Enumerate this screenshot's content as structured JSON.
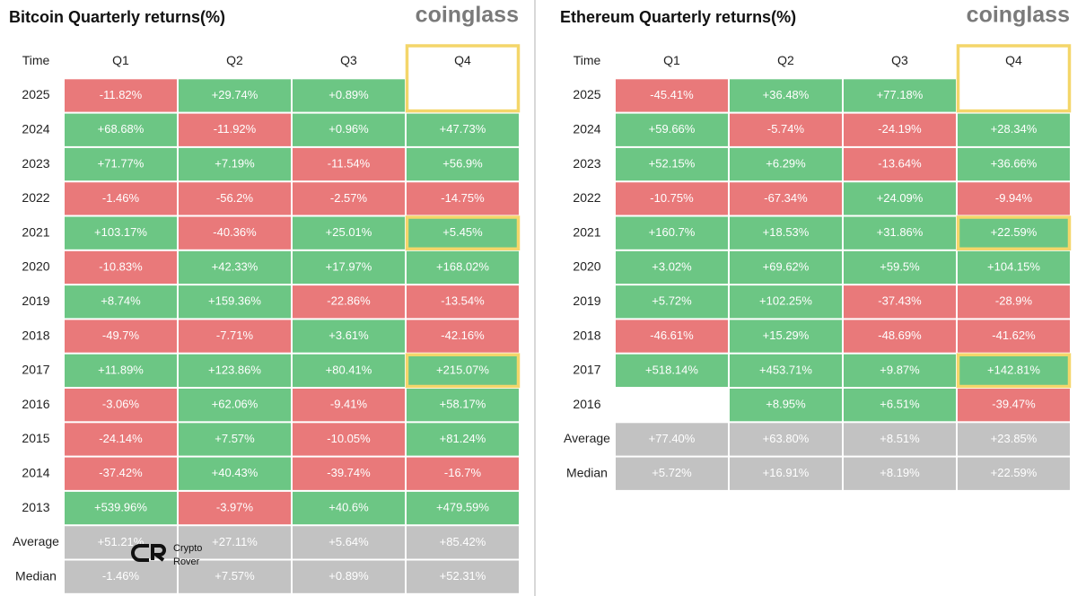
{
  "panels": [
    {
      "title": "Bitcoin Quarterly returns(%)",
      "brand": "coinglass",
      "header": [
        "Time",
        "Q1",
        "Q2",
        "Q3",
        "Q4"
      ],
      "rows": [
        [
          "2025",
          "-11.82%",
          "+29.74%",
          "+0.89%",
          null
        ],
        [
          "2024",
          "+68.68%",
          "-11.92%",
          "+0.96%",
          "+47.73%"
        ],
        [
          "2023",
          "+71.77%",
          "+7.19%",
          "-11.54%",
          "+56.9%"
        ],
        [
          "2022",
          "-1.46%",
          "-56.2%",
          "-2.57%",
          "-14.75%"
        ],
        [
          "2021",
          "+103.17%",
          "-40.36%",
          "+25.01%",
          "+5.45%"
        ],
        [
          "2020",
          "-10.83%",
          "+42.33%",
          "+17.97%",
          "+168.02%"
        ],
        [
          "2019",
          "+8.74%",
          "+159.36%",
          "-22.86%",
          "-13.54%"
        ],
        [
          "2018",
          "-49.7%",
          "-7.71%",
          "+3.61%",
          "-42.16%"
        ],
        [
          "2017",
          "+11.89%",
          "+123.86%",
          "+80.41%",
          "+215.07%"
        ],
        [
          "2016",
          "-3.06%",
          "+62.06%",
          "-9.41%",
          "+58.17%"
        ],
        [
          "2015",
          "-24.14%",
          "+7.57%",
          "-10.05%",
          "+81.24%"
        ],
        [
          "2014",
          "-37.42%",
          "+40.43%",
          "-39.74%",
          "-16.7%"
        ],
        [
          "2013",
          "+539.96%",
          "-3.97%",
          "+40.6%",
          "+479.59%"
        ],
        [
          "Average",
          "+51.21%",
          "+27.11%",
          "+5.64%",
          "+85.42%"
        ],
        [
          "Median",
          "-1.46%",
          "+7.57%",
          "+0.89%",
          "+52.31%"
        ]
      ]
    },
    {
      "title": "Ethereum Quarterly returns(%)",
      "brand": "coinglass",
      "header": [
        "Time",
        "Q1",
        "Q2",
        "Q3",
        "Q4"
      ],
      "rows": [
        [
          "2025",
          "-45.41%",
          "+36.48%",
          "+77.18%",
          null
        ],
        [
          "2024",
          "+59.66%",
          "-5.74%",
          "-24.19%",
          "+28.34%"
        ],
        [
          "2023",
          "+52.15%",
          "+6.29%",
          "-13.64%",
          "+36.66%"
        ],
        [
          "2022",
          "-10.75%",
          "-67.34%",
          "+24.09%",
          "-9.94%"
        ],
        [
          "2021",
          "+160.7%",
          "+18.53%",
          "+31.86%",
          "+22.59%"
        ],
        [
          "2020",
          "+3.02%",
          "+69.62%",
          "+59.5%",
          "+104.15%"
        ],
        [
          "2019",
          "+5.72%",
          "+102.25%",
          "-37.43%",
          "-28.9%"
        ],
        [
          "2018",
          "-46.61%",
          "+15.29%",
          "-48.69%",
          "-41.62%"
        ],
        [
          "2017",
          "+518.14%",
          "+453.71%",
          "+9.87%",
          "+142.81%"
        ],
        [
          "2016",
          null,
          "+8.95%",
          "+6.51%",
          "-39.47%"
        ],
        [
          "Average",
          "+77.40%",
          "+63.80%",
          "+8.51%",
          "+23.85%"
        ],
        [
          "Median",
          "+5.72%",
          "+16.91%",
          "+8.19%",
          "+22.59%"
        ]
      ]
    }
  ],
  "watermark": [
    "Crypto",
    "Rover"
  ]
}
